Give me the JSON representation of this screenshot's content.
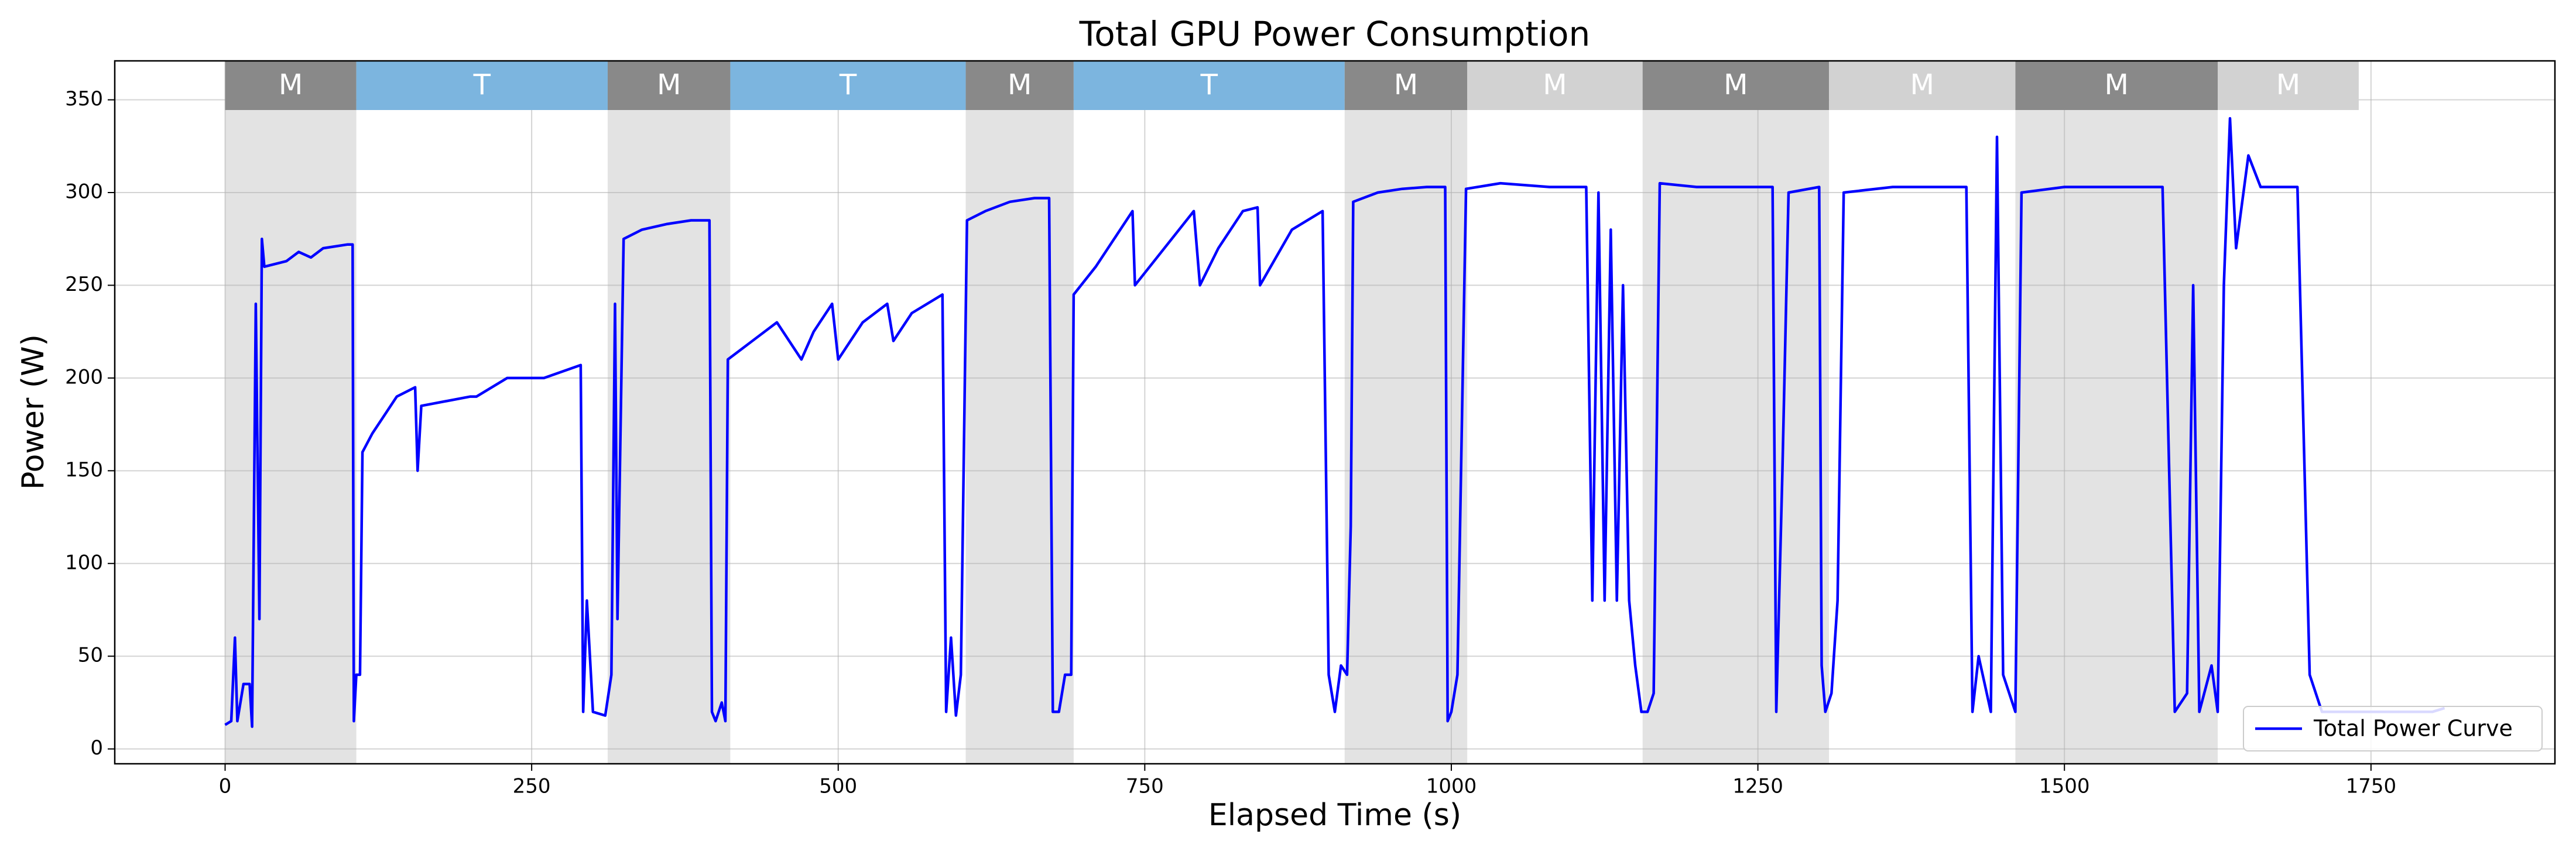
{
  "chart_data": {
    "type": "line",
    "title": "Total GPU Power Consumption",
    "x_label": "Elapsed Time (s)",
    "y_label": "Power (W)",
    "xlim": [
      -90,
      1900
    ],
    "ylim": [
      -8,
      371
    ],
    "xticks": [
      0,
      250,
      500,
      750,
      1000,
      1250,
      1500,
      1750
    ],
    "yticks": [
      0,
      50,
      100,
      150,
      200,
      250,
      300,
      350
    ],
    "grid": true,
    "legend": "lower right",
    "phases": [
      {
        "label": "M",
        "start": 0,
        "end": 107,
        "color": "#898989",
        "shaded": true
      },
      {
        "label": "T",
        "start": 107,
        "end": 312,
        "color": "#7cb5df",
        "shaded": false
      },
      {
        "label": "M",
        "start": 312,
        "end": 412,
        "color": "#898989",
        "shaded": true
      },
      {
        "label": "T",
        "start": 412,
        "end": 604,
        "color": "#7cb5df",
        "shaded": false
      },
      {
        "label": "M",
        "start": 604,
        "end": 692,
        "color": "#898989",
        "shaded": true
      },
      {
        "label": "T",
        "start": 692,
        "end": 913,
        "color": "#7cb5df",
        "shaded": false
      },
      {
        "label": "M",
        "start": 913,
        "end": 1013,
        "color": "#898989",
        "shaded": true
      },
      {
        "label": "M",
        "start": 1013,
        "end": 1156,
        "color": "#d2d2d2",
        "shaded": false
      },
      {
        "label": "M",
        "start": 1156,
        "end": 1308,
        "color": "#898989",
        "shaded": true
      },
      {
        "label": "M",
        "start": 1308,
        "end": 1460,
        "color": "#d2d2d2",
        "shaded": false
      },
      {
        "label": "M",
        "start": 1460,
        "end": 1625,
        "color": "#898989",
        "shaded": true
      },
      {
        "label": "M",
        "start": 1625,
        "end": 1740,
        "color": "#d2d2d2",
        "shaded": false
      }
    ],
    "series": [
      {
        "name": "Total Power Curve",
        "color": "#0000ff",
        "x": [
          0,
          5,
          8,
          10,
          15,
          20,
          22,
          25,
          28,
          30,
          32,
          50,
          60,
          70,
          80,
          100,
          104,
          105,
          107,
          110,
          112,
          120,
          130,
          140,
          155,
          157,
          160,
          200,
          205,
          230,
          250,
          260,
          290,
          292,
          295,
          300,
          310,
          315,
          318,
          320,
          325,
          340,
          360,
          380,
          395,
          397,
          400,
          405,
          408,
          410,
          430,
          450,
          470,
          480,
          495,
          500,
          520,
          540,
          545,
          560,
          585,
          588,
          592,
          596,
          600,
          605,
          620,
          640,
          660,
          672,
          675,
          680,
          685,
          690,
          692,
          710,
          730,
          740,
          742,
          760,
          790,
          795,
          810,
          830,
          842,
          844,
          870,
          895,
          900,
          905,
          910,
          915,
          918,
          920,
          940,
          960,
          980,
          995,
          997,
          1000,
          1005,
          1012,
          1040,
          1080,
          1110,
          1115,
          1120,
          1125,
          1130,
          1135,
          1140,
          1145,
          1150,
          1155,
          1160,
          1165,
          1170,
          1200,
          1250,
          1262,
          1265,
          1270,
          1275,
          1300,
          1302,
          1305,
          1310,
          1315,
          1320,
          1360,
          1410,
          1420,
          1425,
          1430,
          1440,
          1445,
          1450,
          1460,
          1465,
          1500,
          1560,
          1580,
          1590,
          1600,
          1605,
          1610,
          1620,
          1625,
          1630,
          1635,
          1640,
          1650,
          1660,
          1690,
          1700,
          1710,
          1800,
          1810
        ],
        "values": [
          13,
          15,
          60,
          15,
          35,
          35,
          12,
          240,
          70,
          275,
          260,
          263,
          268,
          265,
          270,
          272,
          272,
          15,
          40,
          40,
          160,
          170,
          180,
          190,
          195,
          150,
          185,
          190,
          190,
          200,
          200,
          200,
          207,
          20,
          80,
          20,
          18,
          40,
          240,
          70,
          275,
          280,
          283,
          285,
          285,
          20,
          15,
          25,
          15,
          210,
          220,
          230,
          210,
          225,
          240,
          210,
          230,
          240,
          220,
          235,
          245,
          20,
          60,
          18,
          40,
          285,
          290,
          295,
          297,
          297,
          20,
          20,
          40,
          40,
          245,
          260,
          280,
          290,
          250,
          265,
          290,
          250,
          270,
          290,
          292,
          250,
          280,
          290,
          40,
          20,
          45,
          40,
          120,
          295,
          300,
          302,
          303,
          303,
          15,
          20,
          40,
          302,
          305,
          303,
          303,
          80,
          300,
          80,
          280,
          80,
          250,
          80,
          45,
          20,
          20,
          30,
          305,
          303,
          303,
          303,
          20,
          150,
          300,
          303,
          45,
          20,
          30,
          80,
          300,
          303,
          303,
          303,
          20,
          50,
          20,
          330,
          40,
          20,
          300,
          303,
          303,
          303,
          20,
          30,
          250,
          20,
          45,
          20,
          250,
          340,
          270,
          320,
          303,
          303,
          40,
          20,
          20,
          22
        ]
      }
    ]
  }
}
